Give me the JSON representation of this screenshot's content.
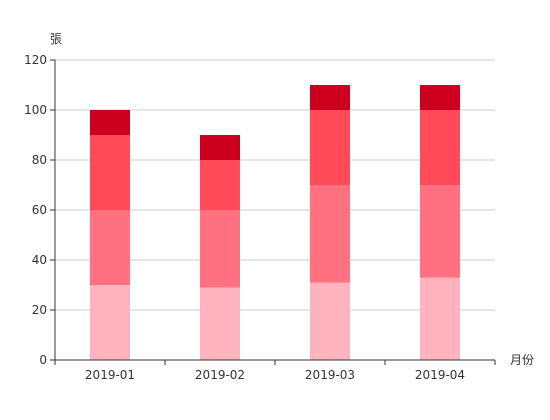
{
  "chart_data": {
    "type": "bar",
    "stacked": true,
    "categories": [
      "2019-01",
      "2019-02",
      "2019-03",
      "2019-04"
    ],
    "series": [
      {
        "values": [
          30,
          29,
          31,
          33
        ],
        "color": "#ffb3bf"
      },
      {
        "values": [
          30,
          31,
          39,
          37
        ],
        "color": "#ff7080"
      },
      {
        "values": [
          30,
          20,
          30,
          30
        ],
        "color": "#ff4a5a"
      },
      {
        "values": [
          10,
          10,
          10,
          10
        ],
        "color": "#cc001e"
      }
    ],
    "xlabel": "月份",
    "ylabel": "張",
    "ylim": [
      0,
      120
    ],
    "yticks": [
      0,
      20,
      40,
      60,
      80,
      100,
      120
    ],
    "grid": true,
    "legend": "none"
  }
}
